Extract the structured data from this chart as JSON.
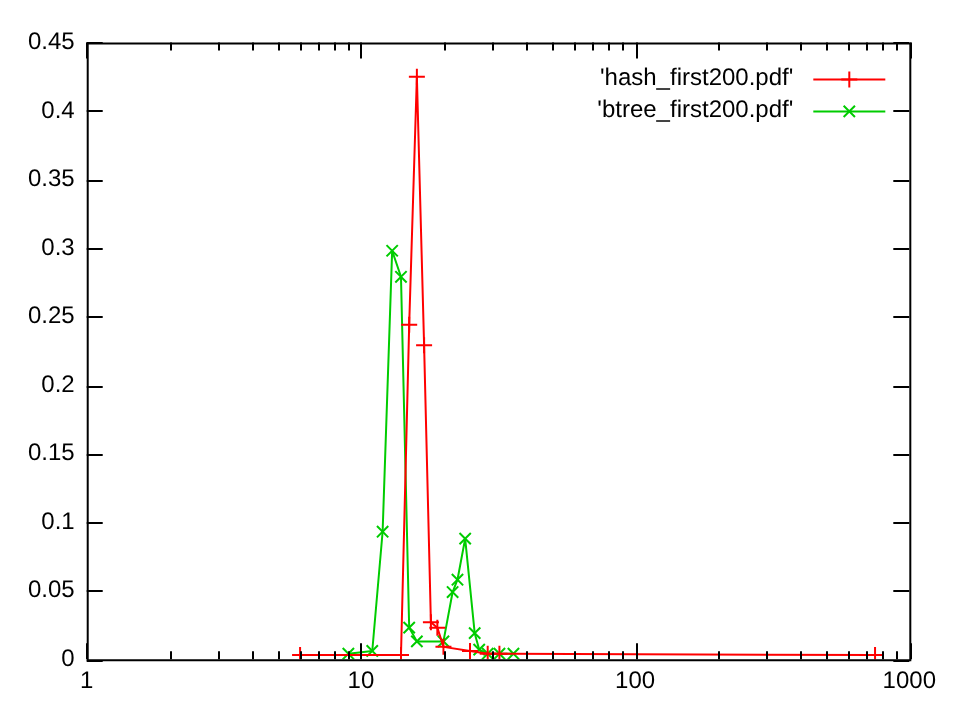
{
  "chart_data": {
    "type": "line",
    "log": "x",
    "xlim": [
      1,
      1000
    ],
    "ylim": [
      0,
      0.45
    ],
    "xticks": [
      1,
      {
        "value": 2,
        "label": null
      },
      {
        "value": 3,
        "label": null
      },
      {
        "value": 4,
        "label": null
      },
      {
        "value": 5,
        "label": null
      },
      {
        "value": 6,
        "label": null
      },
      {
        "value": 7,
        "label": null
      },
      {
        "value": 8,
        "label": null
      },
      {
        "value": 9,
        "label": null
      },
      10,
      {
        "value": 20,
        "label": null
      },
      {
        "value": 30,
        "label": null
      },
      {
        "value": 40,
        "label": null
      },
      {
        "value": 50,
        "label": null
      },
      {
        "value": 60,
        "label": null
      },
      {
        "value": 70,
        "label": null
      },
      {
        "value": 80,
        "label": null
      },
      {
        "value": 90,
        "label": null
      },
      100,
      {
        "value": 200,
        "label": null
      },
      {
        "value": 300,
        "label": null
      },
      {
        "value": 400,
        "label": null
      },
      {
        "value": 500,
        "label": null
      },
      {
        "value": 600,
        "label": null
      },
      {
        "value": 700,
        "label": null
      },
      {
        "value": 800,
        "label": null
      },
      {
        "value": 900,
        "label": null
      },
      1000
    ],
    "yticks": [
      0,
      0.05,
      0.1,
      0.15,
      0.2,
      0.25,
      0.3,
      0.35,
      0.4,
      0.45
    ],
    "grid": false,
    "legend": "top right",
    "marker": "cross",
    "line_style": "solid",
    "series": [
      {
        "name": "'hash_first200.pdf'",
        "color": "#ff0000",
        "x": [
          6,
          14,
          15,
          16,
          17,
          18,
          19,
          20,
          25,
          29,
          32,
          750
        ],
        "values": [
          0.003,
          0.003,
          0.244,
          0.425,
          0.229,
          0.027,
          0.023,
          0.009,
          0.006,
          0.004,
          0.004,
          0.003
        ]
      },
      {
        "name": "'btree_first200.pdf'",
        "color": "#00cc00",
        "x": [
          9,
          11,
          12,
          13,
          14,
          15,
          16,
          20,
          21.6,
          22.5,
          24,
          26,
          27,
          29,
          32,
          36
        ],
        "values": [
          0.004,
          0.006,
          0.093,
          0.298,
          0.279,
          0.023,
          0.013,
          0.013,
          0.049,
          0.058,
          0.088,
          0.019,
          0.007,
          0.004,
          0.004,
          0.004
        ]
      }
    ]
  }
}
